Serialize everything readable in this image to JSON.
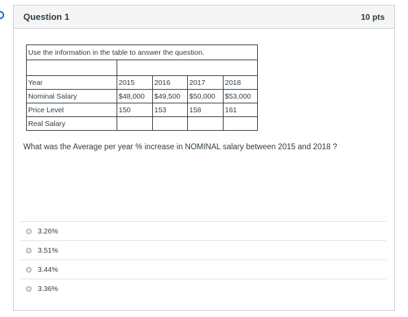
{
  "question": {
    "title": "Question 1",
    "points": "10 pts",
    "instruction": "Use the information in the table to answer the question.",
    "prompt": "What was the Average per year % increase in NOMINAL salary between 2015 and 2018 ?"
  },
  "table": {
    "rows": [
      {
        "label": "Year",
        "cells": [
          "2015",
          "2016",
          "2017",
          "2018"
        ]
      },
      {
        "label": "Nominal Salary",
        "cells": [
          "$48,000",
          "$49,500",
          "$50,000",
          "$53,000"
        ]
      },
      {
        "label": "Price Level",
        "cells": [
          "150",
          "153",
          "158",
          "161"
        ]
      },
      {
        "label": "Real Salary",
        "cells": [
          "",
          "",
          "",
          ""
        ]
      }
    ]
  },
  "answers": [
    {
      "label": "3.26%"
    },
    {
      "label": "3.51%"
    },
    {
      "label": "3.44%"
    },
    {
      "label": "3.36%"
    }
  ]
}
